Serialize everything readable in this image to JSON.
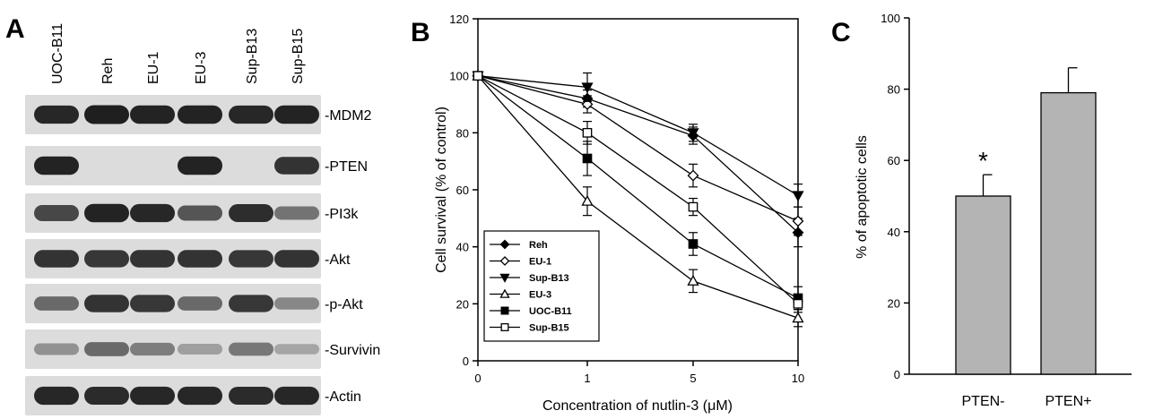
{
  "panel_a": {
    "letter": "A",
    "lanes": [
      "UOC-B11",
      "Reh",
      "EU-1",
      "EU-3",
      "Sup-B13",
      "Sup-B15"
    ],
    "bands": [
      {
        "label": "-MDM2",
        "intensity": [
          0.88,
          0.92,
          0.9,
          0.9,
          0.88,
          0.9
        ]
      },
      {
        "label": "-PTEN",
        "intensity": [
          0.9,
          0.0,
          0.0,
          0.9,
          0.0,
          0.82
        ]
      },
      {
        "label": "-PI3k",
        "intensity": [
          0.72,
          0.9,
          0.88,
          0.65,
          0.85,
          0.5
        ]
      },
      {
        "label": "-Akt",
        "intensity": [
          0.82,
          0.8,
          0.82,
          0.82,
          0.8,
          0.82
        ]
      },
      {
        "label": "-p-Akt",
        "intensity": [
          0.55,
          0.82,
          0.8,
          0.55,
          0.8,
          0.4
        ]
      },
      {
        "label": "-Survivin",
        "intensity": [
          0.35,
          0.55,
          0.45,
          0.28,
          0.48,
          0.25
        ]
      },
      {
        "label": "-Actin",
        "intensity": [
          0.88,
          0.86,
          0.88,
          0.88,
          0.86,
          0.88
        ]
      }
    ]
  },
  "chart_data": [
    {
      "panel": "B",
      "type": "line",
      "xlabel": "Concentration of nutlin-3 (μM)",
      "ylabel": "Cell survival (% of control)",
      "x": [
        "0",
        "1",
        "5",
        "10"
      ],
      "ylim": [
        0,
        120
      ],
      "yticks": [
        0,
        20,
        40,
        60,
        80,
        100,
        120
      ],
      "legend_position": "bottom-left",
      "series": [
        {
          "name": "Reh",
          "marker": "diamond-filled",
          "values": [
            100,
            92,
            79,
            45
          ],
          "err": [
            0,
            3,
            3,
            5
          ]
        },
        {
          "name": "EU-1",
          "marker": "diamond-open",
          "values": [
            100,
            90,
            65,
            49
          ],
          "err": [
            0,
            3,
            4,
            5
          ]
        },
        {
          "name": "Sup-B13",
          "marker": "triangle-down-filled",
          "values": [
            100,
            96,
            80,
            58
          ],
          "err": [
            0,
            5,
            3,
            4
          ]
        },
        {
          "name": "EU-3",
          "marker": "triangle-up-open",
          "values": [
            100,
            56,
            28,
            15
          ],
          "err": [
            0,
            5,
            4,
            3
          ]
        },
        {
          "name": "UOC-B11",
          "marker": "square-filled",
          "values": [
            100,
            71,
            41,
            22
          ],
          "err": [
            0,
            6,
            4,
            4
          ]
        },
        {
          "name": "Sup-B15",
          "marker": "square-open",
          "values": [
            100,
            80,
            54,
            20
          ],
          "err": [
            0,
            4,
            3,
            3
          ]
        }
      ]
    },
    {
      "panel": "C",
      "type": "bar",
      "ylabel": "% of apoptotic cells",
      "categories": [
        "PTEN-",
        "PTEN+"
      ],
      "values": [
        50,
        79
      ],
      "err": [
        6,
        7
      ],
      "annotations": [
        "*",
        ""
      ],
      "ylim": [
        0,
        100
      ],
      "yticks": [
        0,
        20,
        40,
        60,
        80,
        100
      ],
      "bar_color": "#b4b4b4"
    }
  ]
}
